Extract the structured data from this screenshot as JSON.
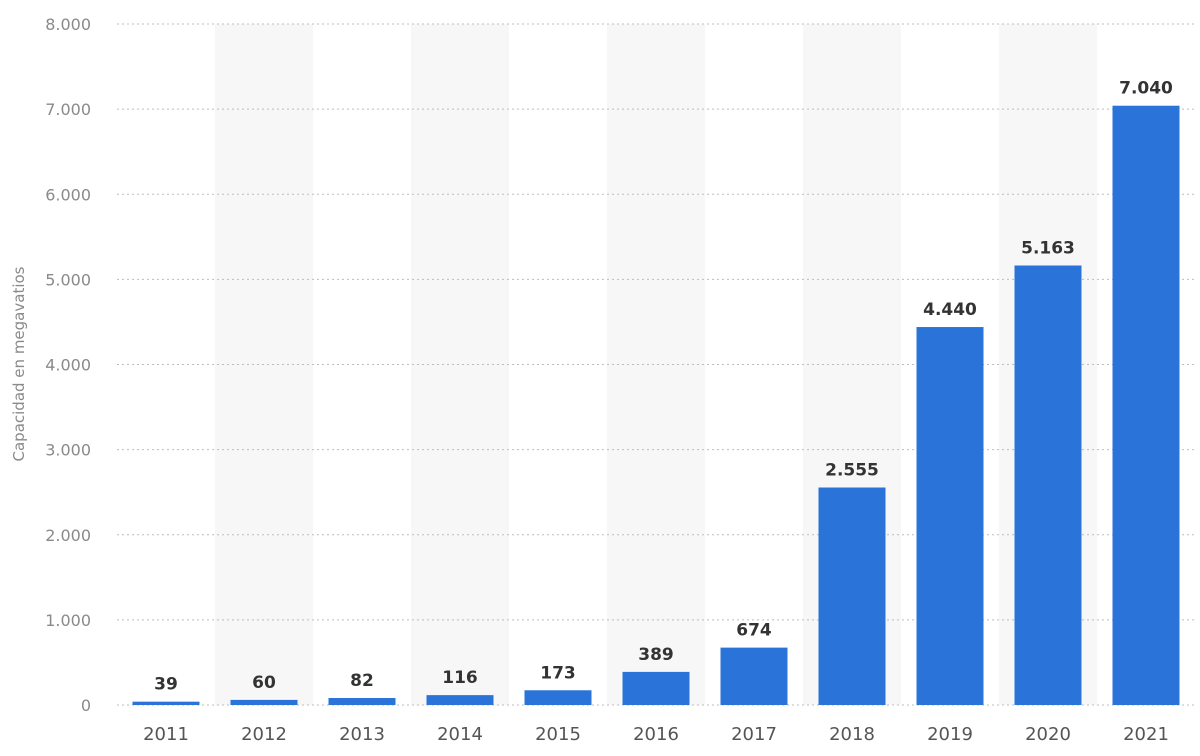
{
  "chart_data": {
    "type": "bar",
    "categories": [
      "2011",
      "2012",
      "2013",
      "2014",
      "2015",
      "2016",
      "2017",
      "2018",
      "2019",
      "2020",
      "2021"
    ],
    "values": [
      39,
      60,
      82,
      116,
      173,
      389,
      674,
      2555,
      4440,
      5163,
      7040
    ],
    "data_labels": [
      "39",
      "60",
      "82",
      "116",
      "173",
      "389",
      "674",
      "2.555",
      "4.440",
      "5.163",
      "7.040"
    ],
    "ylabel": "Capacidad en megavatios",
    "xlabel": "",
    "ylim": [
      0,
      8000
    ],
    "y_ticks": [
      0,
      1000,
      2000,
      3000,
      4000,
      5000,
      6000,
      7000,
      8000
    ],
    "y_tick_labels": [
      "0",
      "1.000",
      "2.000",
      "3.000",
      "4.000",
      "5.000",
      "6.000",
      "7.000",
      "8.000"
    ],
    "grid": true,
    "alternating_bands": true,
    "colors": {
      "bar": "#2a73d9",
      "band": "#f7f7f7",
      "grid": "#bdbdbd"
    }
  }
}
